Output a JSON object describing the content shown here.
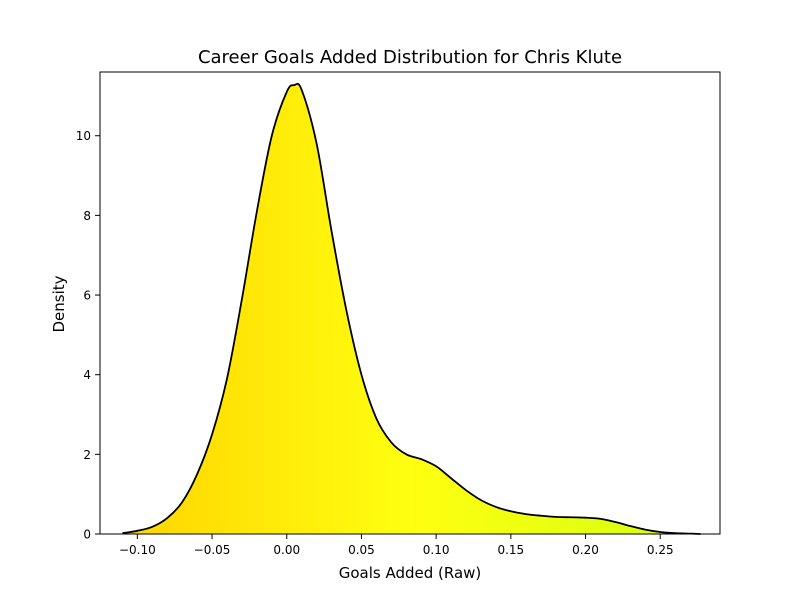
{
  "chart_data": {
    "type": "area",
    "title": "Career Goals Added Distribution for Chris Klute",
    "xlabel": "Goals Added (Raw)",
    "ylabel": "Density",
    "xlim": [
      -0.125,
      0.29
    ],
    "ylim": [
      0,
      11.6
    ],
    "xticks": [
      -0.1,
      -0.05,
      0.0,
      0.05,
      0.1,
      0.15,
      0.2,
      0.25
    ],
    "xtick_labels": [
      "−0.10",
      "−0.05",
      "0.00",
      "0.05",
      "0.10",
      "0.15",
      "0.20",
      "0.25"
    ],
    "yticks": [
      0,
      2,
      4,
      6,
      8,
      10
    ],
    "ytick_labels": [
      "0",
      "2",
      "4",
      "6",
      "8",
      "10"
    ],
    "grid": false,
    "fill_gradient": [
      "#ffd400",
      "#ffff10",
      "#d4ff10"
    ],
    "line_color": "#000000",
    "series": [
      {
        "x": [
          -0.11,
          -0.1,
          -0.09,
          -0.08,
          -0.07,
          -0.06,
          -0.05,
          -0.04,
          -0.03,
          -0.02,
          -0.01,
          0.0,
          0.005,
          0.01,
          0.02,
          0.03,
          0.04,
          0.05,
          0.06,
          0.07,
          0.08,
          0.09,
          0.1,
          0.11,
          0.12,
          0.13,
          0.14,
          0.15,
          0.16,
          0.17,
          0.18,
          0.19,
          0.2,
          0.21,
          0.22,
          0.23,
          0.24,
          0.25,
          0.26,
          0.27,
          0.277
        ],
        "y": [
          0.02,
          0.08,
          0.18,
          0.4,
          0.8,
          1.5,
          2.5,
          3.9,
          5.9,
          8.1,
          10.0,
          11.1,
          11.27,
          11.15,
          9.8,
          7.6,
          5.6,
          4.0,
          2.9,
          2.3,
          2.0,
          1.88,
          1.7,
          1.4,
          1.1,
          0.85,
          0.68,
          0.57,
          0.5,
          0.46,
          0.43,
          0.42,
          0.41,
          0.38,
          0.3,
          0.2,
          0.11,
          0.05,
          0.02,
          0.01,
          0.0
        ]
      }
    ]
  }
}
